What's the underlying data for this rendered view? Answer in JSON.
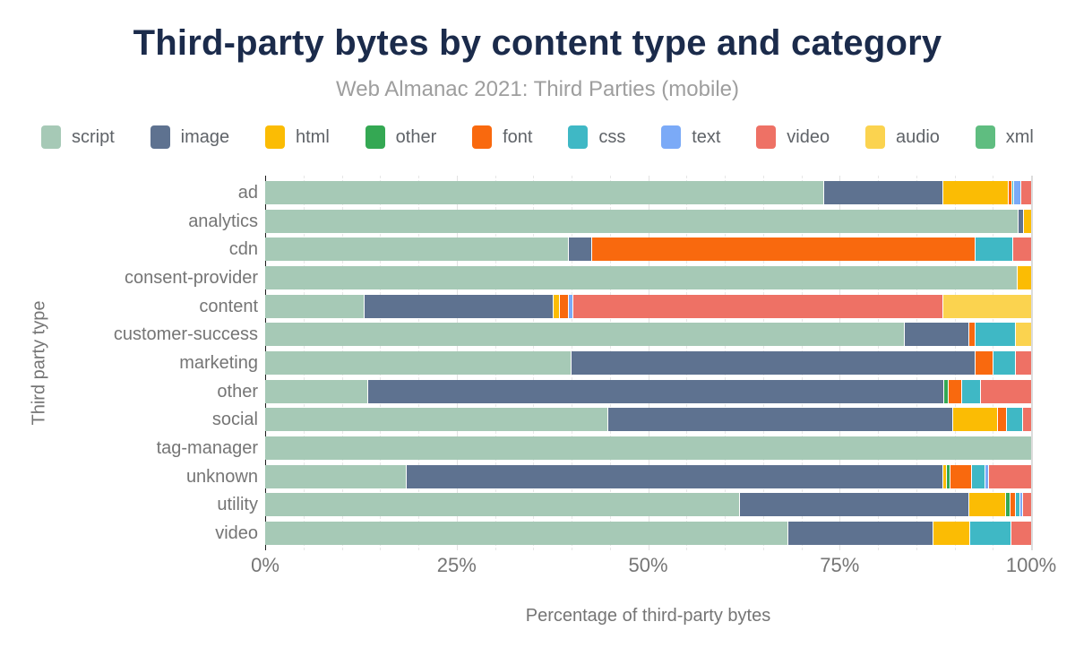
{
  "page": {
    "title": "Third-party bytes by content type and category",
    "subtitle": "Web Almanac 2021: Third Parties (mobile)"
  },
  "chart_data": {
    "type": "bar",
    "stacked": true,
    "orientation": "horizontal",
    "title": "Third-party bytes by content type and category",
    "subtitle": "Web Almanac 2021: Third Parties (mobile)",
    "xlabel": "Percentage of third-party bytes",
    "ylabel": "Third party type",
    "xlim": [
      0,
      100
    ],
    "x_ticks": [
      {
        "value": 0,
        "label": "0%"
      },
      {
        "value": 25,
        "label": "25%"
      },
      {
        "value": 50,
        "label": "50%"
      },
      {
        "value": 75,
        "label": "75%"
      },
      {
        "value": 100,
        "label": "100%"
      }
    ],
    "grid": {
      "minor_step": 5,
      "major_step": 25,
      "gridlines": "vertical"
    },
    "legend_position": "top",
    "content_types": [
      {
        "name": "script",
        "color": "#a6c9b6"
      },
      {
        "name": "image",
        "color": "#5e7290"
      },
      {
        "name": "html",
        "color": "#fbbc04"
      },
      {
        "name": "other",
        "color": "#34a853"
      },
      {
        "name": "font",
        "color": "#f9690e"
      },
      {
        "name": "css",
        "color": "#3fb8c5"
      },
      {
        "name": "text",
        "color": "#7baaf7"
      },
      {
        "name": "video",
        "color": "#ee7165"
      },
      {
        "name": "audio",
        "color": "#fbd34f"
      },
      {
        "name": "xml",
        "color": "#5fbd80"
      }
    ],
    "categories": [
      "ad",
      "analytics",
      "cdn",
      "consent-provider",
      "content",
      "customer-success",
      "marketing",
      "other",
      "social",
      "tag-manager",
      "unknown",
      "utility",
      "video"
    ],
    "series": [
      {
        "name": "script",
        "values": [
          73.0,
          98.4,
          39.7,
          98.2,
          13.0,
          83.5,
          40.0,
          13.5,
          44.8,
          100.0,
          18.5,
          62.0,
          68.3
        ]
      },
      {
        "name": "image",
        "values": [
          15.5,
          0.7,
          3.0,
          0,
          24.7,
          8.4,
          52.7,
          75.1,
          45.0,
          0,
          70.0,
          29.9,
          19.0
        ]
      },
      {
        "name": "html",
        "values": [
          8.6,
          0.9,
          0,
          1.8,
          0.8,
          0,
          0,
          0,
          5.9,
          0,
          0.5,
          4.8,
          4.8
        ]
      },
      {
        "name": "other",
        "values": [
          0,
          0,
          0,
          0,
          0,
          0,
          0,
          0.6,
          0,
          0,
          0.5,
          0.6,
          0
        ]
      },
      {
        "name": "font",
        "values": [
          0.4,
          0,
          50.0,
          0,
          1.2,
          0.9,
          2.4,
          1.8,
          1.2,
          0,
          2.8,
          0.7,
          0
        ]
      },
      {
        "name": "css",
        "values": [
          0.3,
          0,
          5.0,
          0,
          0,
          5.2,
          2.9,
          2.4,
          2.1,
          0,
          1.7,
          0.6,
          5.3
        ]
      },
      {
        "name": "text",
        "values": [
          0.9,
          0,
          0,
          0,
          0.5,
          0,
          0,
          0,
          0,
          0,
          0.5,
          0.4,
          0
        ]
      },
      {
        "name": "video",
        "values": [
          1.3,
          0,
          2.3,
          0,
          48.3,
          0,
          2.0,
          6.6,
          1.0,
          0,
          5.5,
          1.0,
          2.6
        ]
      },
      {
        "name": "audio",
        "values": [
          0,
          0,
          0,
          0,
          11.5,
          2.0,
          0,
          0,
          0,
          0,
          0,
          0,
          0
        ]
      },
      {
        "name": "xml",
        "values": [
          0,
          0,
          0,
          0,
          0,
          0,
          0,
          0,
          0,
          0,
          0,
          0,
          0
        ]
      }
    ],
    "colors": {
      "title": "#1b2b4b",
      "subtitle": "#9e9e9e",
      "axis_text": "#757575",
      "legend_text": "#5f6368",
      "gridline_minor": "#e7e7e7",
      "gridline_major": "#e2e2e2",
      "zero_line": "#1d1d1d",
      "background": "#ffffff"
    }
  }
}
